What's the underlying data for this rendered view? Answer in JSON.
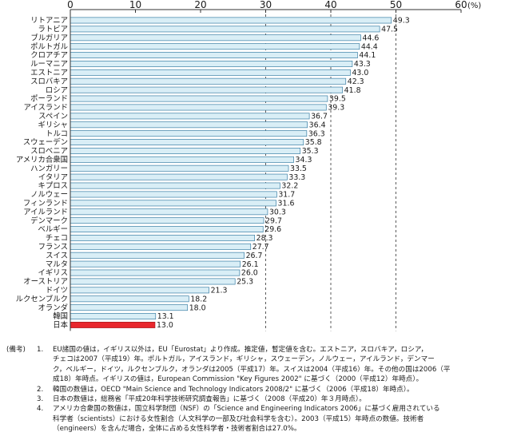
{
  "chart_data": {
    "type": "bar",
    "orientation": "horizontal",
    "unit_label": "(%)",
    "xlim": [
      0,
      60
    ],
    "x_ticks": [
      0,
      10,
      20,
      30,
      40,
      50,
      60
    ],
    "categories": [
      "リトアニア",
      "ラトビア",
      "ブルガリア",
      "ポルトガル",
      "クロアチア",
      "ルーマニア",
      "エストニア",
      "スロバキア",
      "ロシア",
      "ポーランド",
      "アイスランド",
      "スペイン",
      "ギリシャ",
      "トルコ",
      "スウェーデン",
      "スロベニア",
      "アメリカ合衆国",
      "ハンガリー",
      "イタリア",
      "キプロス",
      "ノルウェー",
      "フィンランド",
      "アイルランド",
      "デンマーク",
      "ベルギー",
      "チェコ",
      "フランス",
      "スイス",
      "マルタ",
      "イギリス",
      "オーストリア",
      "ドイツ",
      "ルクセンブルク",
      "オランダ",
      "韓国",
      "日本"
    ],
    "values": [
      49.3,
      47.5,
      44.6,
      44.4,
      44.1,
      43.3,
      43.0,
      42.3,
      41.8,
      39.5,
      39.3,
      36.7,
      36.4,
      36.3,
      35.8,
      35.3,
      34.3,
      33.5,
      33.3,
      32.2,
      31.7,
      31.6,
      30.3,
      29.7,
      29.6,
      28.3,
      27.7,
      26.7,
      26.1,
      26.0,
      25.3,
      21.3,
      18.2,
      18.0,
      13.1,
      13.0
    ],
    "value_labels": [
      "49.3",
      "47.5",
      "44.6",
      "44.4",
      "44.1",
      "43.3",
      "43.0",
      "42.3",
      "41.8",
      "39.5",
      "39.3",
      "36.7",
      "36.4",
      "36.3",
      "35.8",
      "35.3",
      "34.3",
      "33.5",
      "33.3",
      "32.2",
      "31.7",
      "31.6",
      "30.3",
      "29.7",
      "29.6",
      "28.3",
      "27.7",
      "26.7",
      "26.1",
      "26.0",
      "25.3",
      "21.3",
      "18.2",
      "18.0",
      "13.1",
      "13.0"
    ],
    "highlight_category": "日本",
    "colors": {
      "bar": "#d9eef6",
      "bar_stroke": "#3a7fa5",
      "highlight": "#e8262c",
      "axis": "#333333",
      "grid": "#333333"
    },
    "grid_style": "dashed vertical lines at 30, 40 and 50"
  },
  "notes": {
    "heading": "(備考)",
    "items": [
      {
        "num": "1.",
        "lines": [
          "EU諸国の値は，イギリス以外は，EU「Eurostat」より作成。推定値，暫定値を含む。エストニア，スロバキア，ロシア，",
          "チェコは2007（平成19）年。ポルトガル，アイスランド，ギリシャ，スウェーデン，ノルウェー，アイルランド，デンマー",
          "ク，ベルギー，ドイツ，ルクセンブルク，オランダは2005（平成17）年。スイスは2004（平成16）年。その他の国は2006（平",
          "成18）年時点。イギリスの値は，European Commission \"Key Figures 2002\" に基づく（2000（平成12）年時点）。"
        ]
      },
      {
        "num": "2.",
        "lines": [
          "韓国の数値は，OECD \"Main Science and Technology Indicators 2008/2\" に基づく（2006（平成18）年時点）。"
        ]
      },
      {
        "num": "3.",
        "lines": [
          "日本の数値は，総務省「平成20年科学技術研究調査報告」に基づく（2008（平成20）年３月時点）。"
        ]
      },
      {
        "num": "4.",
        "lines": [
          "アメリカ合衆国の数値は，国立科学財団（NSF）の「Science and Engineering Indicators 2006」に基づく雇用されている",
          "科学者（scientists）における女性割合（人文科学の一部及び社会科学を含む）。2003（平成15）年時点の数値。技術者",
          "（engineers）を含んだ場合，全体に占める女性科学者・技術者割合は27.0%。"
        ]
      }
    ]
  }
}
